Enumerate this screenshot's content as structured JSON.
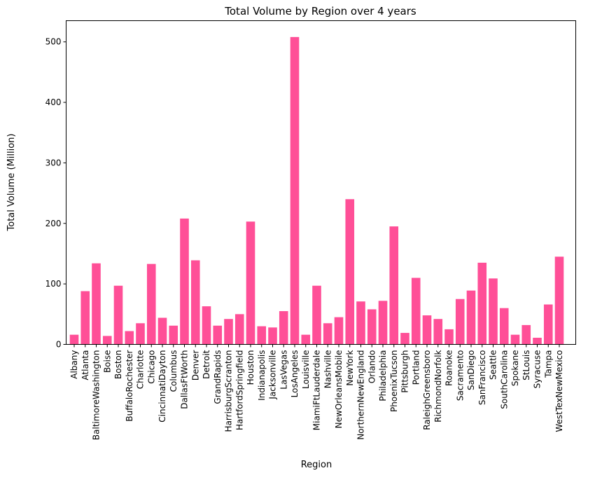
{
  "chart_data": {
    "type": "bar",
    "title": "Total Volume by Region over 4 years",
    "xlabel": "Region",
    "ylabel": "Total Volume (Million)",
    "ylim": [
      0,
      535
    ],
    "yticks": [
      0,
      100,
      200,
      300,
      400,
      500
    ],
    "bar_color": "#ff4f97",
    "grid": false,
    "categories": [
      "Albany",
      "Atlanta",
      "BaltimoreWashington",
      "Boise",
      "Boston",
      "BuffaloRochester",
      "Charlotte",
      "Chicago",
      "CincinnatiDayton",
      "Columbus",
      "DallasFtWorth",
      "Denver",
      "Detroit",
      "GrandRapids",
      "HarrisburgScranton",
      "HartfordSpringfield",
      "Houston",
      "Indianapolis",
      "Jacksonville",
      "LasVegas",
      "LosAngeles",
      "Louisville",
      "MiamiFtLauderdale",
      "Nashville",
      "NewOrleansMobile",
      "NewYork",
      "NorthernNewEngland",
      "Orlando",
      "Philadelphia",
      "PhoenixTucson",
      "Pittsburgh",
      "Portland",
      "RaleighGreensboro",
      "RichmondNorfolk",
      "Roanoke",
      "Sacramento",
      "SanDiego",
      "SanFrancisco",
      "Seattle",
      "SouthCarolina",
      "Spokane",
      "StLouis",
      "Syracuse",
      "Tampa",
      "WestTexNewMexico"
    ],
    "values": [
      16,
      88,
      134,
      14,
      97,
      22,
      35,
      133,
      44,
      31,
      208,
      139,
      63,
      31,
      42,
      50,
      203,
      30,
      28,
      55,
      508,
      16,
      97,
      35,
      45,
      240,
      71,
      58,
      72,
      195,
      19,
      110,
      48,
      42,
      25,
      75,
      89,
      135,
      109,
      60,
      16,
      32,
      11,
      66,
      145
    ]
  }
}
